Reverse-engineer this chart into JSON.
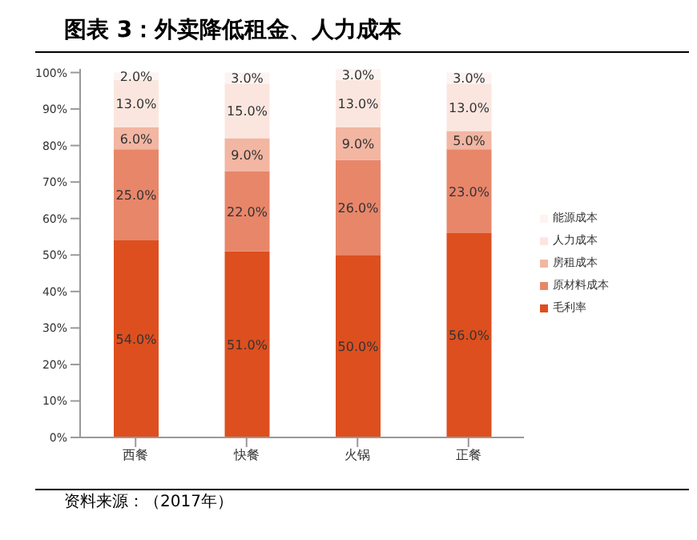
{
  "chart_data": {
    "type": "bar",
    "title": "图表 3：外卖降低租金、人力成本",
    "categories": [
      "西餐",
      "快餐",
      "火锅",
      "正餐"
    ],
    "stacked": true,
    "series": [
      {
        "name": "毛利率",
        "color": "#dd4f1f",
        "values": [
          54,
          51,
          50,
          56
        ],
        "value_labels": [
          "54.0%",
          "51.0%",
          "50.0%",
          "56.0%"
        ]
      },
      {
        "name": "原材料成本",
        "color": "#e8866a",
        "values": [
          25,
          22,
          26,
          23
        ],
        "value_labels": [
          "25.0%",
          "22.0%",
          "26.0%",
          "23.0%"
        ]
      },
      {
        "name": "房租成本",
        "color": "#f2b6a2",
        "values": [
          6,
          9,
          9,
          5
        ],
        "value_labels": [
          "6.0%",
          "9.0%",
          "9.0%",
          "5.0%"
        ]
      },
      {
        "name": "人力成本",
        "color": "#fbe6df",
        "values": [
          13,
          15,
          13,
          13
        ],
        "value_labels": [
          "13.0%",
          "15.0%",
          "13.0%",
          "13.0%"
        ]
      },
      {
        "name": "能源成本",
        "color": "#fdf4f1",
        "values": [
          2,
          3,
          3,
          3
        ],
        "value_labels": [
          "2.0%",
          "3.0%",
          "3.0%",
          "3.0%"
        ]
      }
    ],
    "ylim": [
      0,
      101
    ],
    "yticks": [
      {
        "value": 0,
        "label": "0%"
      },
      {
        "value": 10,
        "label": "10%"
      },
      {
        "value": 20,
        "label": "20%"
      },
      {
        "value": 30,
        "label": "30%"
      },
      {
        "value": 40,
        "label": "40%"
      },
      {
        "value": 50,
        "label": "50%"
      },
      {
        "value": 60,
        "label": "60%"
      },
      {
        "value": 70,
        "label": "70%"
      },
      {
        "value": 80,
        "label": "80%"
      },
      {
        "value": 90,
        "label": "90%"
      },
      {
        "value": 100,
        "label": "100%"
      }
    ],
    "grid": false,
    "legend": "right",
    "annotations": [
      "资料来源：（2017年）"
    ]
  }
}
